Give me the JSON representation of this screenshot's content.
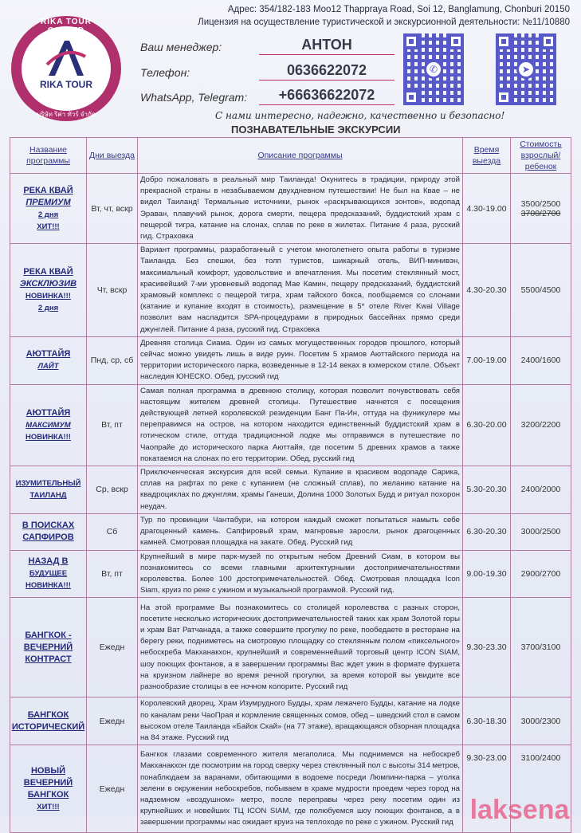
{
  "header": {
    "logo": {
      "ring_top": "RIKA TOUR CO.,LTD",
      "brand": "RIKA TOUR",
      "ring_bottom": "บริษัท ริค่า ทัวร์ จำกัด"
    },
    "address": "Адрес: 354/182-183 Moo12 Thappraya Road, Soi 12, Banglamung, Chonburi 20150",
    "license": "Лицензия на осуществление туристической и экскурсионной деятельности: №11/10880",
    "manager_label": "Ваш менеджер:",
    "manager_value": "АНТОН",
    "phone_label": "Телефон:",
    "phone_value": "0636622072",
    "messenger_label": "WhatsApp, Telegram:",
    "messenger_value": "+66636622072",
    "qr_codes": [
      {
        "icon": "whatsapp-icon"
      },
      {
        "icon": "telegram-icon"
      }
    ],
    "slogan": "С нами интересно, надежно, качественно и безопасно!",
    "title": "ПОЗНАВАТЕЛЬНЫЕ ЭКСКУРСИИ"
  },
  "table": {
    "headers": [
      "Название программы",
      "Дни выезда",
      "Описание программы",
      "Время выезда",
      "Стоимость взрослый/ ребенок"
    ],
    "rows": [
      {
        "name": [
          [
            "РЕКА КВАЙ",
            ""
          ],
          [
            "ПРЕМИУМ",
            "it"
          ],
          [
            "2 дня",
            "sm"
          ],
          [
            "ХИТ!!!",
            "sm"
          ]
        ],
        "days": "Вт, чт, вскр",
        "desc": "Добро пожаловать в реальный мир Таиланда! Окунитесь в традиции, природу этой прекрасной страны в незабываемом двухдневном путешествии! Не был на Квае – не видел Таиланд! Термальные источники, рынок «раскрывающихся зонтов», водопад Эраван, плавучий рынок, дорога смерти, пещера предсказаний, буддистский храм с пещерой тигра, катание на слонах, сплав по реке в жилетах. Питание 4 раза, русский гид. Страховка",
        "time": "4.30-19.00",
        "price": "3500/2500",
        "price_old": "3700/2700"
      },
      {
        "name": [
          [
            "РЕКА КВАЙ",
            ""
          ],
          [
            "ЭКСКЛЮЗИВ",
            "it"
          ],
          [
            "НОВИНКА!!!",
            "sm"
          ],
          [
            "2 дня",
            "sm"
          ]
        ],
        "days": "Чт, вскр",
        "desc": "Вариант программы, разработанный с учетом многолетнего опыта работы в туризме Таиланда. Без спешки, без толп туристов, шикарный отель, ВИП-минивэн, максимальный комфорт, удовольствие и впечатления. Мы посетим стеклянный мост, красивейший 7-ми уровневый водопад Мае Камин, пещеру предсказаний, буддистский храмовый комплекс с пещерой тигра, храм тайского бокса, пообщаемся со слонами (катание и купание входят в стоимость), размещение в 5* отеле River Kwai Village позволит вам насладится SPA-процедурами в природных бассейнах прямо среди джунглей. Питание 4 раза, русский гид. Страховка",
        "time": "4.30-20.30",
        "price": "5500/4500"
      },
      {
        "name": [
          [
            "АЮТТАЙЯ",
            ""
          ],
          [
            "ЛАЙТ",
            "it sm"
          ]
        ],
        "days": "Пнд, ср, сб",
        "desc": "Древняя столица Сиама. Один из самых могущественных городов прошлого, который сейчас можно увидеть лишь в виде руин. Посетим 5 храмов Аюттайского периода на территории исторического парка, возведенные в 12-14 веках в кхмерском стиле. Объект наследия ЮНЕСКО. Обед, русский гид",
        "time": "7.00-19.00",
        "price": "2400/1600"
      },
      {
        "name": [
          [
            "АЮТТАЙЯ",
            ""
          ],
          [
            "МАКСИМУМ",
            "it sm"
          ],
          [
            "НОВИНКА!!!",
            "sm"
          ]
        ],
        "days": "Вт, пт",
        "desc": "Самая полная программа в древнюю столицу, которая позволит почувствовать себя настоящим жителем древней столицы. Путешествие начнется с посещения действующей летней королевской резиденции Банг Па-Ин, оттуда на фуникулере мы переправимся на остров, на котором находится единственный буддистский храм в готическом стиле, оттуда традиционной лодке мы отправимся в путешествие по Чаопрайе до исторического парка Аюттайя, где посетим 5 древних храмов а также покатаемся на слонах по его территории. Обед, русский гид",
        "time": "6.30-20.00",
        "price": "3200/2200"
      },
      {
        "name": [
          [
            "ИЗУМИТЕЛЬНЫЙ",
            "sm"
          ],
          [
            "ТАИЛАНД",
            "sm"
          ]
        ],
        "days": "Ср, вскр",
        "desc": "Приключенческая экскурсия для всей семьи. Купание в красивом водопаде Сарика, сплав на рафтах по реке с купанием (не сложный сплав), по желанию катание на квадроциклах по джунглям, храмы Ганеши, Долина 1000 Золотых Будд и ритуал похорон неудач.",
        "time": "5.30-20.30",
        "price": "2400/2000"
      },
      {
        "name": [
          [
            "В ПОИСКАХ",
            ""
          ],
          [
            "САПФИРОВ",
            ""
          ]
        ],
        "days": "Сб",
        "desc": "Тур по провинции Чантабури, на котором каждый сможет попытаться намыть себе драгоценный камень. Сапфировый храм, магнровые заросли, рынок драгоценных камней. Смотровая площадка на закате. Обед. Русский гид",
        "time": "6.30-20.30",
        "price": "3000/2500"
      },
      {
        "name": [
          [
            "НАЗАД В",
            ""
          ],
          [
            "БУДУЩЕЕ",
            "sm"
          ],
          [
            "НОВИНКА!!!",
            "sm"
          ]
        ],
        "days": "Вт, пт",
        "desc": "Крупнейший в мире парк-музей по открытым небом Древний Сиам, в котором вы познакомитесь со всеми главными архитектурными достопримечательностями королевства. Более 100 достопримечательностей. Обед. Смотровая площадка Icon Siam, круиз по реке с ужином и музыкальной программой. Русский гид.",
        "time": "9.00-19.30",
        "price": "2900/2700"
      },
      {
        "name": [
          [
            "БАНГКОК -",
            ""
          ],
          [
            "ВЕЧЕРНИЙ",
            ""
          ],
          [
            "КОНТРАСТ",
            ""
          ]
        ],
        "days": "Ежедн",
        "desc": "На этой программе Вы познакомитесь со столицей королевства с разных сторон, посетите несколько исторических достопримечательностей таких как храм Золотой горы и храм Ват Ратчанада, а также совершите прогулку по реке, пообедаете в ресторане на берегу реки, подниметесь на смотровую площадку со стеклянным полом «пиксельного» небоскреба Макханакхон, крупнейший и современнейший торговый центр ICON SIAM, шоу поющих фонтанов, а в завершении программы Вас ждет ужин в формате фуршета на круизном лайнере во время речной прогулки, за время которой вы увидите все разнообразие столицы в ее ночном колорите. Русский гид",
        "time": "9.30-23.30",
        "price": "3700/3100"
      },
      {
        "name": [
          [
            "БАНГКОК",
            ""
          ],
          [
            "ИСТОРИЧЕСКИЙ",
            ""
          ]
        ],
        "days": "Ежедн",
        "desc": "Королевский дворец, Храм Изумрудного Будды, храм лежачего Будды, катание на лодке по каналам реки ЧаоПрая и кормление священных сомов, обед – шведский стол в самом высоком отеле Таиланда «Байок Скай» (на 77 этаже), вращающаяся обзорная площадка на 84 этаже. Русский гид",
        "time": "6.30-18.30",
        "price": "3000/2300"
      },
      {
        "name": [
          [
            "НОВЫЙ",
            ""
          ],
          [
            "ВЕЧЕРНИЙ",
            ""
          ],
          [
            "БАНГКОК",
            ""
          ],
          [
            "ХИТ!!!",
            "sm"
          ]
        ],
        "days": "Ежедн",
        "desc": "Бангкок глазами современного жителя мегаполиса. Мы поднимемся на небоскреб Макханакхон где посмотрим на город сверху через стеклянный пол с высоты 314 метров, понаблюдаем за варанами, обитающими в водоеме посреди Люмпини-парка – уголка зелени в окружении небоскребов, побываем в храме мудрости проедем через город на надземном «воздушном» метро, после переправы через реку посетим один из крупнейших и новейших ТЦ ICON SIAM, где полюбуемся шоу поющих фонтанов, а в завершении программы нас ожидает круиз на теплоходе по реке с ужином. Русский гид",
        "time": "9.30-23.00",
        "price": "3100/2400"
      }
    ]
  },
  "watermark": "laksena",
  "colors": {
    "logo": "#b0306e",
    "qr": "#3b3fbf",
    "names": "#252a7a",
    "borders": "#b47aa0",
    "watermark": "#e8668e"
  }
}
